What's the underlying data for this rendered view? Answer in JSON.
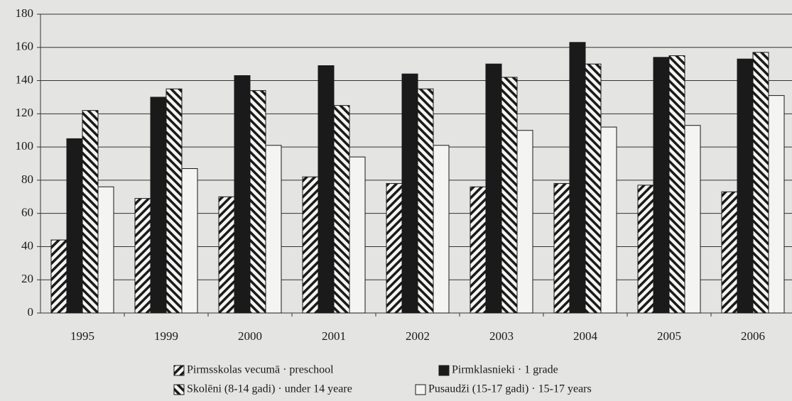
{
  "chart_data": {
    "type": "bar",
    "categories": [
      "1995",
      "1999",
      "2000",
      "2001",
      "2002",
      "2003",
      "2004",
      "2005",
      "2006"
    ],
    "series": [
      {
        "name": "Pirmsskolas vecumā · preschool",
        "color": "#1a1a1a",
        "hatch": "forward",
        "values": [
          44,
          69,
          70,
          82,
          78,
          76,
          78,
          77,
          73
        ]
      },
      {
        "name": "Pirmklasnieki · 1 grade",
        "color": "#1a1a1a",
        "hatch": "solid",
        "values": [
          105,
          130,
          143,
          149,
          144,
          150,
          163,
          154,
          153
        ]
      },
      {
        "name": "Skolēni (8-14 gadi) · under 14 yeare",
        "color": "#1a1a1a",
        "hatch": "back",
        "values": [
          122,
          135,
          134,
          125,
          135,
          142,
          150,
          155,
          157
        ]
      },
      {
        "name": "Pusaudži (15-17 gadi) · 15-17 years",
        "color": "#1a1a1a",
        "hatch": "none",
        "values": [
          76,
          87,
          101,
          94,
          101,
          110,
          112,
          113,
          131
        ]
      }
    ],
    "ylim": [
      0,
      180
    ],
    "yticks": [
      0,
      20,
      40,
      60,
      80,
      100,
      120,
      140,
      160,
      180
    ],
    "grid": true
  }
}
